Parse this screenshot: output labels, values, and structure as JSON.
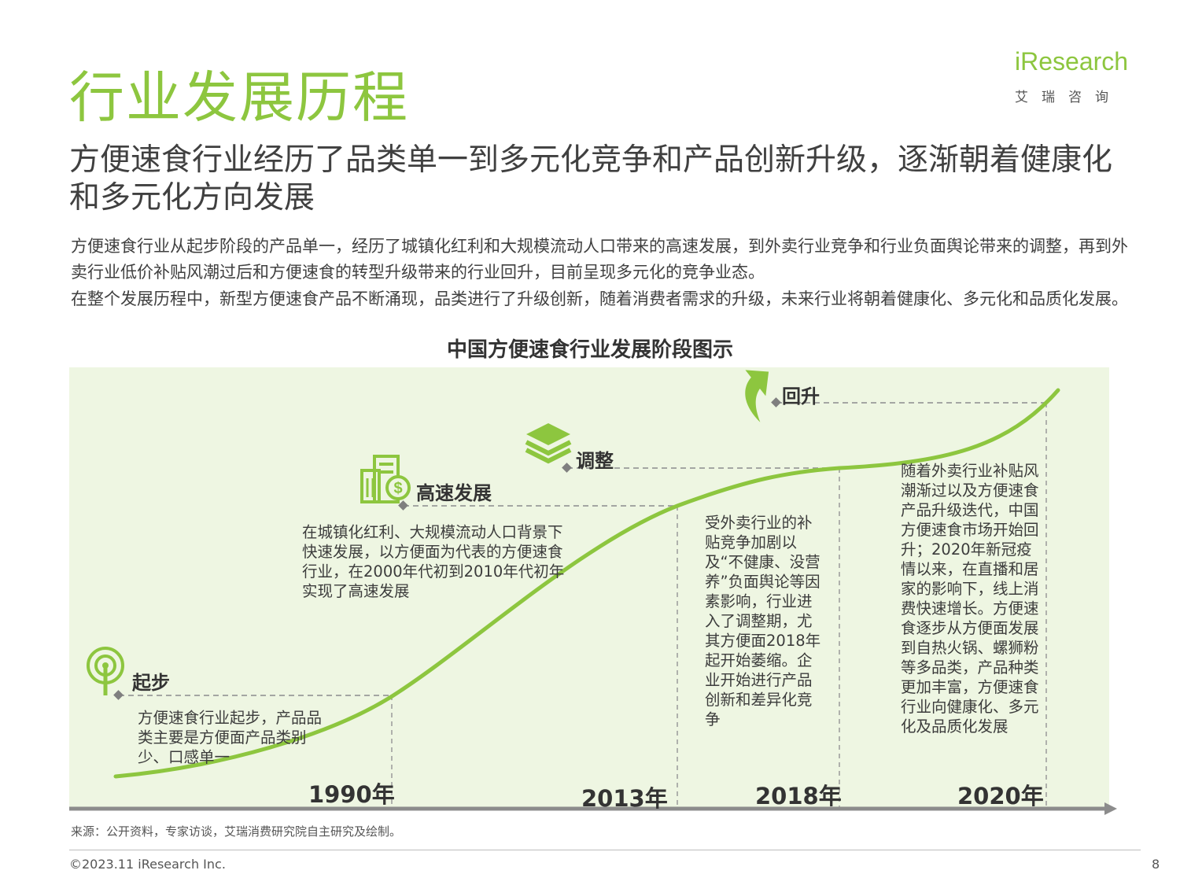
{
  "header": {
    "title": "行业发展历程",
    "subtitle": "方便速食行业经历了品类单一到多元化竞争和产品创新升级，逐渐朝着健康化和多元化方向发展",
    "paragraph_1": "方便速食行业从起步阶段的产品单一，经历了城镇化红利和大规模流动人口带来的高速发展，到外卖行业竞争和行业负面舆论带来的调整，再到外卖行业低价补贴风潮过后和方便速食的转型升级带来的行业回升，目前呈现多元化的竞争业态。",
    "paragraph_2": "在整个发展历程中，新型方便速食产品不断涌现，品类进行了升级创新，随着消费者需求的升级，未来行业将朝着健康化、多元化和品质化发展。"
  },
  "logo": {
    "text": "iResearch",
    "sub": "艾瑞咨询"
  },
  "diagram": {
    "title": "中国方便速食行业发展阶段图示",
    "accent_color": "#8dc63f",
    "stages": [
      {
        "label": "起步",
        "icon": "signal-tower-icon",
        "year": "1990年",
        "desc": "方便速食行业起步，产品品类主要是方便面产品类别少、口感单一"
      },
      {
        "label": "高速发展",
        "icon": "building-dollar-icon",
        "year": "2013年",
        "desc": "在城镇化红利、大规模流动人口背景下快速发展，以方便面为代表的方便速食行业，在2000年代初到2010年代初年实现了高速发展"
      },
      {
        "label": "调整",
        "icon": "layers-icon",
        "year": "2018年",
        "desc": "受外卖行业的补贴竞争加剧以及“不健康、没营养”负面舆论等因素影响，行业进入了调整期，尤其方便面2018年起开始萎缩。企业开始进行产品创新和差异化竞争"
      },
      {
        "label": "回升",
        "icon": "arrow-up-icon",
        "year": "2020年",
        "desc": "随着外卖行业补贴风潮渐过以及方便速食产品升级迭代，中国方便速食市场开始回升；2020年新冠疫情以来，在直播和居家的影响下，线上消费快速增长。方便速食逐步从方便面发展到自热火锅、螺狮粉等多品类，产品种类更加丰富，方便速食行业向健康化、多元化及品质化发展"
      }
    ]
  },
  "footer": {
    "source": "来源：公开资料，专家访谈，艾瑞消费研究院自主研究及绘制。",
    "copyright": "©2023.11 iResearch Inc.",
    "page": "8"
  }
}
